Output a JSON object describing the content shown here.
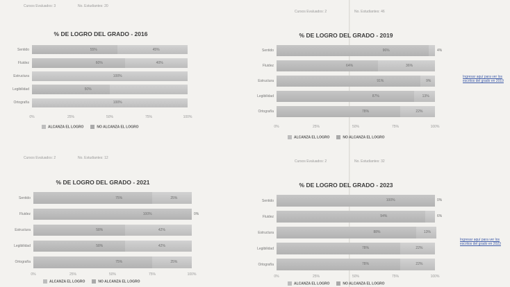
{
  "panels": [
    {
      "cursos_evaluados": "Cursos Evaluados: 3",
      "num_estudiantes": "No. Estudiantes: 20",
      "legend": [
        "ALCANZA EL LOGRO",
        "NO ALCANZA EL LOGRO"
      ],
      "link_text": ""
    },
    {
      "cursos_evaluados": "Cursos Evaluados: 2",
      "num_estudiantes": "No. Estudiantes: 46",
      "legend": [
        "ALCANZA EL LOGRO",
        "NO ALCANZA EL LOGRO"
      ],
      "link_text": "Ingresar aquí para ver los escritos del grado en 2019"
    },
    {
      "cursos_evaluados": "Cursos Evaluados: 2",
      "num_estudiantes": "No. Estudiantes: 12",
      "legend": [
        "ALCANZA EL LOGRO",
        "NO ALCANZA EL LOGRO"
      ],
      "link_text": ""
    },
    {
      "cursos_evaluados": "Cursos Evaluados: 2",
      "num_estudiantes": "No. Estudiantes: 32",
      "legend": [
        "ALCANZA EL LOGRO",
        "NO ALCANZA EL LOGRO"
      ],
      "link_text": "Ingresar aquí para ver los escritos del grado en 2023"
    }
  ],
  "chart_data": [
    {
      "type": "bar",
      "orientation": "horizontal",
      "stacked": true,
      "title": "% DE LOGRO DEL GRADO - 2016",
      "categories": [
        "Sentido",
        "Fluidez",
        "Estructura",
        "Legibilidad",
        "Ortografía"
      ],
      "series": [
        {
          "name": "ALCANZA EL LOGRO",
          "values": [
            55,
            60,
            0,
            50,
            0
          ],
          "labels": [
            "55%",
            "60%",
            "",
            "50%",
            ""
          ]
        },
        {
          "name": "NO ALCANZA EL LOGRO",
          "values": [
            45,
            40,
            100,
            50,
            100
          ],
          "labels": [
            "45%",
            "40%",
            "100%",
            "",
            "100%"
          ]
        }
      ],
      "xlim": [
        0,
        100
      ],
      "xticks": [
        "0%",
        "25%",
        "50%",
        "75%",
        "100%"
      ],
      "legend": "bottom"
    },
    {
      "type": "bar",
      "orientation": "horizontal",
      "stacked": true,
      "title": "% DE LOGRO DEL GRADO - 2019",
      "categories": [
        "Sentido",
        "Fluidez",
        "Estructura",
        "Legibilidad",
        "Ortografía"
      ],
      "series": [
        {
          "name": "ALCANZA EL LOGRO",
          "values": [
            96,
            64,
            91,
            87,
            78
          ],
          "labels": [
            "96%",
            "64%",
            "91%",
            "87%",
            "78%"
          ]
        },
        {
          "name": "NO ALCANZA EL LOGRO",
          "values": [
            4,
            36,
            9,
            13,
            22
          ],
          "labels": [
            "4%",
            "36%",
            "9%",
            "13%",
            "22%"
          ]
        }
      ],
      "xlim": [
        0,
        100
      ],
      "xticks": [
        "0%",
        "25%",
        "50%",
        "75%",
        "100%"
      ],
      "legend": "bottom"
    },
    {
      "type": "bar",
      "orientation": "horizontal",
      "stacked": true,
      "title": "% DE LOGRO DEL GRADO - 2021",
      "categories": [
        "Sentido",
        "Fluidez",
        "Estructura",
        "Legibilidad",
        "Ortografía"
      ],
      "series": [
        {
          "name": "ALCANZA EL LOGRO",
          "values": [
            75,
            100,
            58,
            58,
            75
          ],
          "labels": [
            "75%",
            "100%",
            "58%",
            "58%",
            "75%"
          ]
        },
        {
          "name": "NO ALCANZA EL LOGRO",
          "values": [
            25,
            0,
            42,
            42,
            25
          ],
          "labels": [
            "25%",
            "0%",
            "42%",
            "42%",
            "25%"
          ]
        }
      ],
      "xlim": [
        0,
        100
      ],
      "xticks": [
        "0%",
        "25%",
        "50%",
        "75%",
        "100%"
      ],
      "legend": "bottom"
    },
    {
      "type": "bar",
      "orientation": "horizontal",
      "stacked": true,
      "title": "% DE LOGRO DEL GRADO - 2023",
      "categories": [
        "Sentido",
        "Fluidez",
        "Estructura",
        "Legibilidad",
        "Ortografía"
      ],
      "series": [
        {
          "name": "ALCANZA EL LOGRO",
          "values": [
            100,
            94,
            88,
            78,
            78
          ],
          "labels": [
            "100%",
            "94%",
            "88%",
            "78%",
            "78%"
          ]
        },
        {
          "name": "NO ALCANZA EL LOGRO",
          "values": [
            0,
            6,
            13,
            22,
            22
          ],
          "labels": [
            "0%",
            "6%",
            "13%",
            "22%",
            "22%"
          ]
        }
      ],
      "xlim": [
        0,
        100
      ],
      "xticks": [
        "0%",
        "25%",
        "50%",
        "75%",
        "100%"
      ],
      "legend": "bottom"
    }
  ]
}
